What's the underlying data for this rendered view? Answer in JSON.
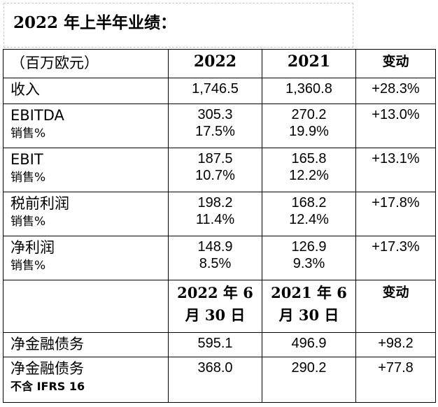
{
  "title": "2022 年上半年业绩：",
  "header": {
    "label": "（百万欧元）",
    "col_2022": "2022",
    "col_2021": "2021",
    "col_change": "变动"
  },
  "rows": [
    {
      "label": "收入",
      "sub": "",
      "v2022": "1,746.5",
      "v2022_sub": "",
      "v2021": "1,360.8",
      "v2021_sub": "",
      "change": "+28.3%"
    },
    {
      "label": "EBITDA",
      "sub": "销售%",
      "v2022": "305.3",
      "v2022_sub": "17.5%",
      "v2021": "270.2",
      "v2021_sub": "19.9%",
      "change": "+13.0%"
    },
    {
      "label": "EBIT",
      "sub": "销售%",
      "v2022": "187.5",
      "v2022_sub": "10.7%",
      "v2021": "165.8",
      "v2021_sub": "12.2%",
      "change": "+13.1%"
    },
    {
      "label": "税前利润",
      "sub": "销售%",
      "v2022": "198.2",
      "v2022_sub": "11.4%",
      "v2021": "168.2",
      "v2021_sub": "12.4%",
      "change": "+17.8%"
    },
    {
      "label": "净利润",
      "sub": "销售%",
      "v2022": "148.9",
      "v2022_sub": "8.5%",
      "v2021": "126.9",
      "v2021_sub": "9.3%",
      "change": "+17.3%"
    }
  ],
  "header2": {
    "col_2022_line1": "2022 年 6",
    "col_2022_line2": "月 30 日",
    "col_2021_line1": "2021 年 6",
    "col_2021_line2": "月 30 日",
    "col_change": "变动"
  },
  "debt_rows": [
    {
      "label": "净金融债务",
      "sub": "",
      "v2022": "595.1",
      "v2021": "496.9",
      "change": "+98.2"
    },
    {
      "label": "净金融债务",
      "sub": "不含 IFRS 16",
      "v2022": "368.0",
      "v2021": "290.2",
      "change": "+77.8"
    }
  ]
}
